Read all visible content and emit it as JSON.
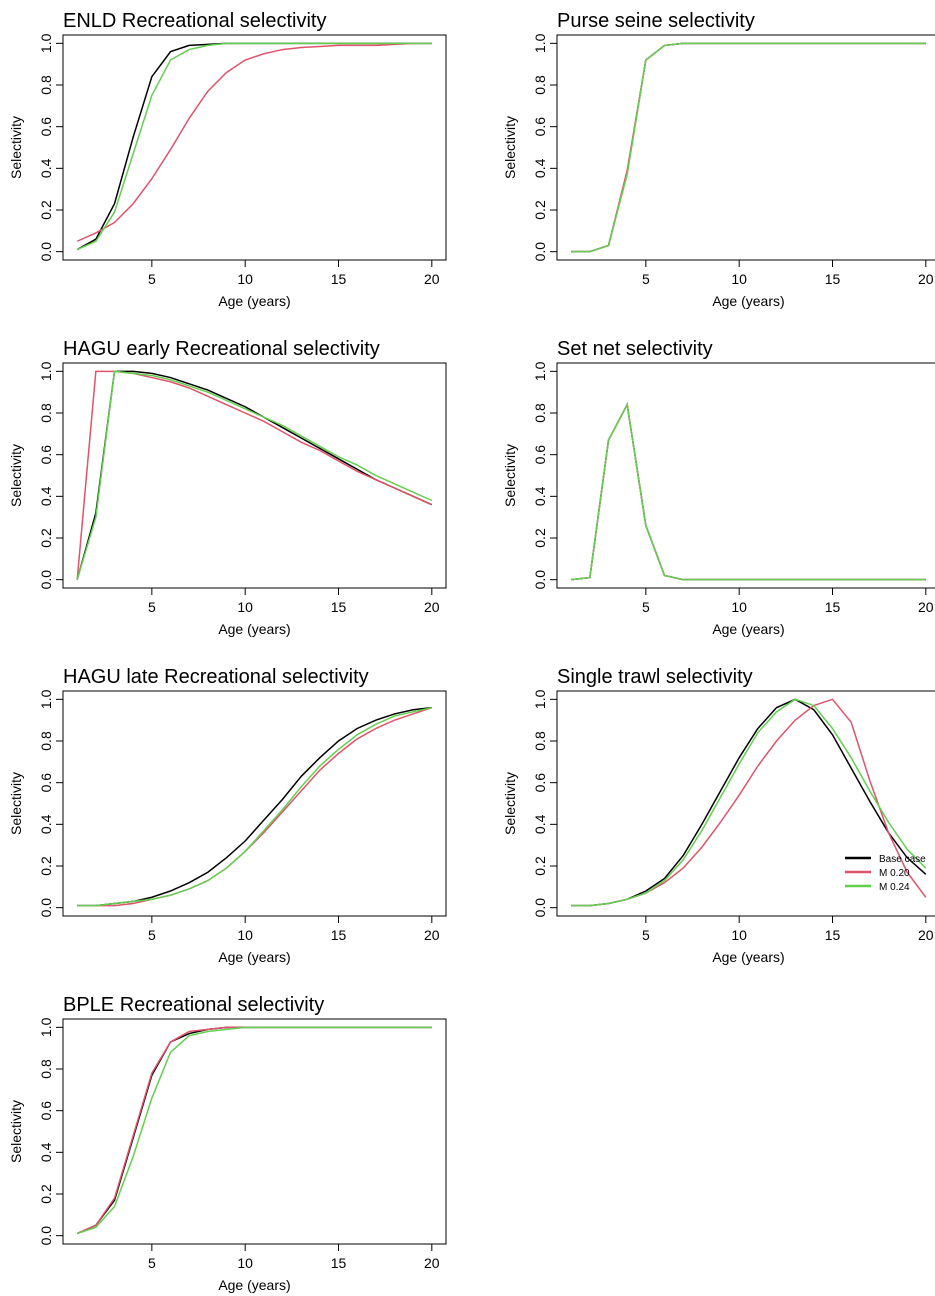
{
  "chart_data": [
    {
      "type": "line",
      "title": "ENLD Recreational selectivity",
      "xlabel": "Age (years)",
      "ylabel": "Selectivity",
      "x": [
        1,
        2,
        3,
        4,
        5,
        6,
        7,
        8,
        9,
        10,
        11,
        12,
        13,
        14,
        15,
        16,
        17,
        18,
        19,
        20
      ],
      "xlim": [
        0.24,
        20.76
      ],
      "ylim": [
        -0.04,
        1.04
      ],
      "xticks": [
        5,
        10,
        15,
        20
      ],
      "yticks": [
        {
          "value": 0,
          "label": "0.0"
        },
        {
          "value": 0.2,
          "label": "0.2"
        },
        {
          "value": 0.4,
          "label": "0.4"
        },
        {
          "value": 0.6,
          "label": "0.6"
        },
        {
          "value": 0.8,
          "label": "0.8"
        },
        {
          "value": 1,
          "label": "1.0"
        }
      ],
      "series": [
        {
          "color": "#000000",
          "values": [
            0.01,
            0.06,
            0.23,
            0.55,
            0.84,
            0.96,
            0.99,
            0.995,
            1,
            1,
            1,
            1,
            1,
            1,
            1,
            1,
            1,
            1,
            1,
            1
          ]
        },
        {
          "color": "#df536b",
          "values": [
            0.05,
            0.09,
            0.14,
            0.23,
            0.35,
            0.49,
            0.64,
            0.77,
            0.86,
            0.92,
            0.95,
            0.97,
            0.98,
            0.985,
            0.99,
            0.99,
            0.99,
            0.995,
            1,
            1
          ]
        },
        {
          "color": "#61d04f",
          "values": [
            0.01,
            0.05,
            0.19,
            0.47,
            0.75,
            0.92,
            0.97,
            0.99,
            1,
            1,
            1,
            1,
            1,
            1,
            1,
            1,
            1,
            1,
            1,
            1
          ]
        }
      ]
    },
    {
      "type": "line",
      "title": "Purse seine selectivity",
      "xlabel": "Age (years)",
      "ylabel": "Selectivity",
      "x": [
        1,
        2,
        3,
        4,
        5,
        6,
        7,
        8,
        9,
        10,
        11,
        12,
        13,
        14,
        15,
        16,
        17,
        18,
        19,
        20
      ],
      "xlim": [
        0.24,
        20.76
      ],
      "ylim": [
        -0.04,
        1.04
      ],
      "xticks": [
        5,
        10,
        15,
        20
      ],
      "yticks": [
        {
          "value": 0,
          "label": "0.0"
        },
        {
          "value": 0.2,
          "label": "0.2"
        },
        {
          "value": 0.4,
          "label": "0.4"
        },
        {
          "value": 0.6,
          "label": "0.6"
        },
        {
          "value": 0.8,
          "label": "0.8"
        },
        {
          "value": 1,
          "label": "1.0"
        }
      ],
      "series": [
        {
          "color": "#000000",
          "values": [
            0,
            0,
            0.03,
            0.38,
            0.92,
            0.99,
            1,
            1,
            1,
            1,
            1,
            1,
            1,
            1,
            1,
            1,
            1,
            1,
            1,
            1
          ]
        },
        {
          "color": "#df536b",
          "values": [
            0,
            0,
            0.03,
            0.39,
            0.92,
            0.99,
            1,
            1,
            1,
            1,
            1,
            1,
            1,
            1,
            1,
            1,
            1,
            1,
            1,
            1
          ]
        },
        {
          "color": "#61d04f",
          "values": [
            0,
            0,
            0.03,
            0.37,
            0.92,
            0.99,
            1,
            1,
            1,
            1,
            1,
            1,
            1,
            1,
            1,
            1,
            1,
            1,
            1,
            1
          ]
        }
      ]
    },
    {
      "type": "line",
      "title": "HAGU early Recreational selectivity",
      "xlabel": "Age (years)",
      "ylabel": "Selectivity",
      "x": [
        1,
        2,
        3,
        4,
        5,
        6,
        7,
        8,
        9,
        10,
        11,
        12,
        13,
        14,
        15,
        16,
        17,
        18,
        19,
        20
      ],
      "xlim": [
        0.24,
        20.76
      ],
      "ylim": [
        -0.04,
        1.04
      ],
      "xticks": [
        5,
        10,
        15,
        20
      ],
      "yticks": [
        {
          "value": 0,
          "label": "0.0"
        },
        {
          "value": 0.2,
          "label": "0.2"
        },
        {
          "value": 0.4,
          "label": "0.4"
        },
        {
          "value": 0.6,
          "label": "0.6"
        },
        {
          "value": 0.8,
          "label": "0.8"
        },
        {
          "value": 1,
          "label": "1.0"
        }
      ],
      "series": [
        {
          "color": "#000000",
          "values": [
            0,
            0.32,
            1,
            1,
            0.99,
            0.97,
            0.94,
            0.91,
            0.87,
            0.83,
            0.78,
            0.73,
            0.68,
            0.63,
            0.58,
            0.53,
            0.48,
            0.44,
            0.4,
            0.36
          ]
        },
        {
          "color": "#df536b",
          "values": [
            0,
            1,
            1,
            0.99,
            0.97,
            0.95,
            0.92,
            0.88,
            0.84,
            0.8,
            0.76,
            0.71,
            0.66,
            0.62,
            0.57,
            0.52,
            0.48,
            0.44,
            0.4,
            0.36
          ]
        },
        {
          "color": "#61d04f",
          "values": [
            0,
            0.3,
            1,
            0.99,
            0.98,
            0.96,
            0.93,
            0.9,
            0.86,
            0.82,
            0.78,
            0.74,
            0.69,
            0.64,
            0.59,
            0.55,
            0.5,
            0.46,
            0.42,
            0.38
          ]
        }
      ]
    },
    {
      "type": "line",
      "title": "Set net selectivity",
      "xlabel": "Age (years)",
      "ylabel": "Selectivity",
      "x": [
        1,
        2,
        3,
        4,
        5,
        6,
        7,
        8,
        9,
        10,
        11,
        12,
        13,
        14,
        15,
        16,
        17,
        18,
        19,
        20
      ],
      "xlim": [
        0.24,
        20.76
      ],
      "ylim": [
        -0.04,
        1.04
      ],
      "xticks": [
        5,
        10,
        15,
        20
      ],
      "yticks": [
        {
          "value": 0,
          "label": "0.0"
        },
        {
          "value": 0.2,
          "label": "0.2"
        },
        {
          "value": 0.4,
          "label": "0.4"
        },
        {
          "value": 0.6,
          "label": "0.6"
        },
        {
          "value": 0.8,
          "label": "0.8"
        },
        {
          "value": 1,
          "label": "1.0"
        }
      ],
      "series": [
        {
          "color": "#000000",
          "values": [
            0,
            0.01,
            0.67,
            0.84,
            0.26,
            0.02,
            0,
            0,
            0,
            0,
            0,
            0,
            0,
            0,
            0,
            0,
            0,
            0,
            0,
            0
          ]
        },
        {
          "color": "#df536b",
          "values": [
            0,
            0.01,
            0.67,
            0.84,
            0.26,
            0.02,
            0,
            0,
            0,
            0,
            0,
            0,
            0,
            0,
            0,
            0,
            0,
            0,
            0,
            0
          ]
        },
        {
          "color": "#61d04f",
          "values": [
            0,
            0.01,
            0.67,
            0.84,
            0.26,
            0.02,
            0,
            0,
            0,
            0,
            0,
            0,
            0,
            0,
            0,
            0,
            0,
            0,
            0,
            0
          ]
        }
      ]
    },
    {
      "type": "line",
      "title": "HAGU late Recreational selectivity",
      "xlabel": "Age (years)",
      "ylabel": "Selectivity",
      "x": [
        1,
        2,
        3,
        4,
        5,
        6,
        7,
        8,
        9,
        10,
        11,
        12,
        13,
        14,
        15,
        16,
        17,
        18,
        19,
        20
      ],
      "xlim": [
        0.24,
        20.76
      ],
      "ylim": [
        -0.04,
        1.04
      ],
      "xticks": [
        5,
        10,
        15,
        20
      ],
      "yticks": [
        {
          "value": 0,
          "label": "0.0"
        },
        {
          "value": 0.2,
          "label": "0.2"
        },
        {
          "value": 0.4,
          "label": "0.4"
        },
        {
          "value": 0.6,
          "label": "0.6"
        },
        {
          "value": 0.8,
          "label": "0.8"
        },
        {
          "value": 1,
          "label": "1.0"
        }
      ],
      "series": [
        {
          "color": "#000000",
          "values": [
            0.01,
            0.01,
            0.02,
            0.03,
            0.05,
            0.08,
            0.12,
            0.17,
            0.24,
            0.32,
            0.42,
            0.52,
            0.63,
            0.72,
            0.8,
            0.86,
            0.9,
            0.93,
            0.95,
            0.96
          ]
        },
        {
          "color": "#df536b",
          "values": [
            0.01,
            0.01,
            0.01,
            0.02,
            0.04,
            0.06,
            0.09,
            0.13,
            0.19,
            0.27,
            0.36,
            0.46,
            0.56,
            0.66,
            0.74,
            0.81,
            0.86,
            0.9,
            0.93,
            0.96
          ]
        },
        {
          "color": "#61d04f",
          "values": [
            0.01,
            0.01,
            0.02,
            0.03,
            0.04,
            0.06,
            0.09,
            0.13,
            0.19,
            0.27,
            0.37,
            0.47,
            0.58,
            0.68,
            0.76,
            0.83,
            0.88,
            0.92,
            0.94,
            0.96
          ]
        }
      ]
    },
    {
      "type": "line",
      "title": "Single trawl selectivity",
      "xlabel": "Age (years)",
      "ylabel": "Selectivity",
      "legend": "bottom-right",
      "x": [
        1,
        2,
        3,
        4,
        5,
        6,
        7,
        8,
        9,
        10,
        11,
        12,
        13,
        14,
        15,
        16,
        17,
        18,
        19,
        20
      ],
      "xlim": [
        0.24,
        20.76
      ],
      "ylim": [
        -0.04,
        1.04
      ],
      "xticks": [
        5,
        10,
        15,
        20
      ],
      "yticks": [
        {
          "value": 0,
          "label": "0.0"
        },
        {
          "value": 0.2,
          "label": "0.2"
        },
        {
          "value": 0.4,
          "label": "0.4"
        },
        {
          "value": 0.6,
          "label": "0.6"
        },
        {
          "value": 0.8,
          "label": "0.8"
        },
        {
          "value": 1,
          "label": "1.0"
        }
      ],
      "series": [
        {
          "name": "Base case",
          "color": "#000000",
          "values": [
            0.01,
            0.01,
            0.02,
            0.04,
            0.08,
            0.14,
            0.25,
            0.4,
            0.56,
            0.72,
            0.86,
            0.96,
            1,
            0.95,
            0.83,
            0.67,
            0.51,
            0.36,
            0.24,
            0.16
          ]
        },
        {
          "name": "M 0.20",
          "color": "#df536b",
          "values": [
            0.01,
            0.01,
            0.02,
            0.04,
            0.07,
            0.12,
            0.19,
            0.29,
            0.41,
            0.54,
            0.68,
            0.8,
            0.9,
            0.97,
            1,
            0.89,
            0.61,
            0.36,
            0.17,
            0.05
          ]
        },
        {
          "name": "M 0.24",
          "color": "#61d04f",
          "values": [
            0.01,
            0.01,
            0.02,
            0.04,
            0.07,
            0.13,
            0.23,
            0.37,
            0.53,
            0.69,
            0.84,
            0.94,
            1,
            0.97,
            0.86,
            0.72,
            0.56,
            0.41,
            0.28,
            0.19
          ]
        }
      ]
    },
    {
      "type": "line",
      "title": "BPLE Recreational selectivity",
      "xlabel": "Age (years)",
      "ylabel": "Selectivity",
      "x": [
        1,
        2,
        3,
        4,
        5,
        6,
        7,
        8,
        9,
        10,
        11,
        12,
        13,
        14,
        15,
        16,
        17,
        18,
        19,
        20
      ],
      "xlim": [
        0.24,
        20.76
      ],
      "ylim": [
        -0.04,
        1.04
      ],
      "xticks": [
        5,
        10,
        15,
        20
      ],
      "yticks": [
        {
          "value": 0,
          "label": "0.0"
        },
        {
          "value": 0.2,
          "label": "0.2"
        },
        {
          "value": 0.4,
          "label": "0.4"
        },
        {
          "value": 0.6,
          "label": "0.6"
        },
        {
          "value": 0.8,
          "label": "0.8"
        },
        {
          "value": 1,
          "label": "1.0"
        }
      ],
      "series": [
        {
          "color": "#000000",
          "values": [
            0.01,
            0.05,
            0.17,
            0.47,
            0.77,
            0.93,
            0.97,
            0.99,
            1,
            1,
            1,
            1,
            1,
            1,
            1,
            1,
            1,
            1,
            1,
            1
          ]
        },
        {
          "color": "#df536b",
          "values": [
            0.01,
            0.05,
            0.18,
            0.48,
            0.78,
            0.93,
            0.98,
            0.99,
            1,
            1,
            1,
            1,
            1,
            1,
            1,
            1,
            1,
            1,
            1,
            1
          ]
        },
        {
          "color": "#61d04f",
          "values": [
            0.01,
            0.04,
            0.14,
            0.38,
            0.66,
            0.88,
            0.96,
            0.98,
            0.99,
            1,
            1,
            1,
            1,
            1,
            1,
            1,
            1,
            1,
            1,
            1
          ]
        }
      ]
    }
  ]
}
